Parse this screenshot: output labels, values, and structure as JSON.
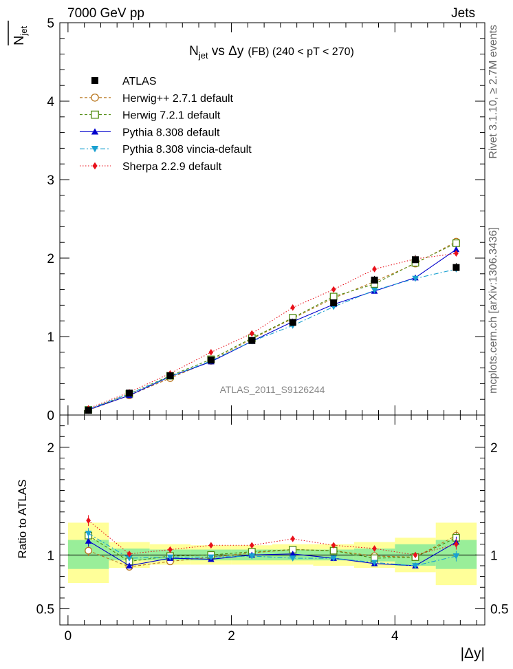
{
  "header": {
    "left": "7000 GeV pp",
    "right": "Jets"
  },
  "side_labels": {
    "rivet": "Rivet 3.1.10, ≥ 2.7M events",
    "mcplots": "mcplots.cern.ch [arXiv:1306.3436]"
  },
  "watermark": "ATLAS_2011_S9126244",
  "chart_data": [
    {
      "type": "line",
      "title_main": "N",
      "title_sub": "jet",
      "title_rest": " vs Δy",
      "title_small": "(FB) (240 < pT < 270)",
      "ylabel_main": "N",
      "ylabel_sub": "jet",
      "ylim": [
        0,
        5
      ],
      "yticks": [
        0,
        1,
        2,
        3,
        4,
        5
      ],
      "xlim": [
        -0.1,
        5.1
      ],
      "x": [
        0.25,
        0.75,
        1.25,
        1.75,
        2.25,
        2.75,
        3.25,
        3.75,
        4.25,
        4.75
      ],
      "data": {
        "name": "ATLAS",
        "values": [
          0.06,
          0.28,
          0.5,
          0.7,
          0.95,
          1.18,
          1.43,
          1.72,
          1.98,
          1.88
        ]
      },
      "series": [
        {
          "name": "Herwig++ 2.7.1 default",
          "color": "#b8751c",
          "marker": "circle-open",
          "dash": "4,3",
          "values": [
            0.063,
            0.25,
            0.47,
            0.69,
            0.97,
            1.23,
            1.49,
            1.7,
            1.93,
            2.21
          ]
        },
        {
          "name": "Herwig 7.2.1 default",
          "color": "#4f8a10",
          "marker": "square-open",
          "dash": "4,3",
          "values": [
            0.066,
            0.27,
            0.5,
            0.71,
            0.98,
            1.24,
            1.51,
            1.67,
            1.94,
            2.19
          ]
        },
        {
          "name": "Pythia 8.308 default",
          "color": "#0000cc",
          "marker": "triangle-up",
          "dash": "",
          "values": [
            0.068,
            0.25,
            0.49,
            0.68,
            0.94,
            1.19,
            1.41,
            1.58,
            1.75,
            2.11
          ]
        },
        {
          "name": "Pythia 8.308 vincia-default",
          "color": "#1aa0d0",
          "marker": "triangle-down",
          "dash": "7,3,2,3",
          "values": [
            0.074,
            0.27,
            0.49,
            0.69,
            0.94,
            1.14,
            1.38,
            1.59,
            1.74,
            1.86
          ]
        },
        {
          "name": "Sherpa 2.2.9 default",
          "color": "#e8101a",
          "marker": "diamond",
          "dash": "1.5,2.5",
          "values": [
            0.084,
            0.29,
            0.53,
            0.8,
            1.04,
            1.37,
            1.6,
            1.86,
            1.99,
            2.06
          ]
        }
      ]
    },
    {
      "type": "line",
      "ylabel": "Ratio to ATLAS",
      "xlabel": "|Δy|",
      "ylim": [
        0.35,
        2.3
      ],
      "yticks": [
        0.5,
        1,
        2
      ],
      "xticks": [
        0,
        2,
        4
      ],
      "xlim": [
        -0.1,
        5.1
      ],
      "bins": [
        [
          0,
          0.5
        ],
        [
          0.5,
          1.0
        ],
        [
          1.0,
          1.5
        ],
        [
          1.5,
          2.0
        ],
        [
          2.0,
          2.5
        ],
        [
          2.5,
          3.0
        ],
        [
          3.0,
          3.5
        ],
        [
          3.5,
          4.0
        ],
        [
          4.0,
          4.5
        ],
        [
          4.5,
          5.0
        ]
      ],
      "band_green": [
        [
          0.87,
          1.14
        ],
        [
          0.95,
          1.06
        ],
        [
          0.95,
          1.05
        ],
        [
          0.95,
          1.05
        ],
        [
          0.95,
          1.05
        ],
        [
          0.95,
          1.05
        ],
        [
          0.95,
          1.05
        ],
        [
          0.94,
          1.06
        ],
        [
          0.9,
          1.1
        ],
        [
          0.87,
          1.14
        ]
      ],
      "band_yellow": [
        [
          0.74,
          1.3
        ],
        [
          0.88,
          1.12
        ],
        [
          0.91,
          1.1
        ],
        [
          0.91,
          1.09
        ],
        [
          0.91,
          1.09
        ],
        [
          0.91,
          1.1
        ],
        [
          0.9,
          1.1
        ],
        [
          0.88,
          1.12
        ],
        [
          0.84,
          1.16
        ],
        [
          0.72,
          1.3
        ]
      ],
      "x": [
        0.25,
        0.75,
        1.25,
        1.75,
        2.25,
        2.75,
        3.25,
        3.75,
        4.25,
        4.75
      ],
      "series": [
        {
          "name": "Herwig++ 2.7.1 default",
          "color": "#b8751c",
          "marker": "circle-open",
          "dash": "4,3",
          "values": [
            1.04,
            0.89,
            0.94,
            0.98,
            1.02,
            1.05,
            1.04,
            0.99,
            0.98,
            1.18
          ]
        },
        {
          "name": "Herwig 7.2.1 default",
          "color": "#4f8a10",
          "marker": "square-open",
          "dash": "4,3",
          "values": [
            1.18,
            0.94,
            0.99,
            1.0,
            1.03,
            1.05,
            1.04,
            0.97,
            0.98,
            1.16
          ]
        },
        {
          "name": "Pythia 8.308 default",
          "color": "#0000cc",
          "marker": "triangle-up",
          "dash": "",
          "values": [
            1.13,
            0.9,
            0.97,
            0.96,
            1.0,
            1.01,
            0.97,
            0.92,
            0.9,
            1.12
          ]
        },
        {
          "name": "Pythia 8.308 vincia-default",
          "color": "#1aa0d0",
          "marker": "triangle-down",
          "dash": "7,3,2,3",
          "values": [
            1.2,
            0.97,
            0.98,
            0.98,
            0.99,
            0.97,
            0.97,
            0.93,
            0.9,
            0.99
          ]
        },
        {
          "name": "Sherpa 2.2.9 default",
          "color": "#e8101a",
          "marker": "diamond",
          "dash": "1.5,2.5",
          "values": [
            1.32,
            1.01,
            1.05,
            1.09,
            1.09,
            1.15,
            1.09,
            1.06,
            1.0,
            1.1
          ]
        }
      ]
    }
  ]
}
